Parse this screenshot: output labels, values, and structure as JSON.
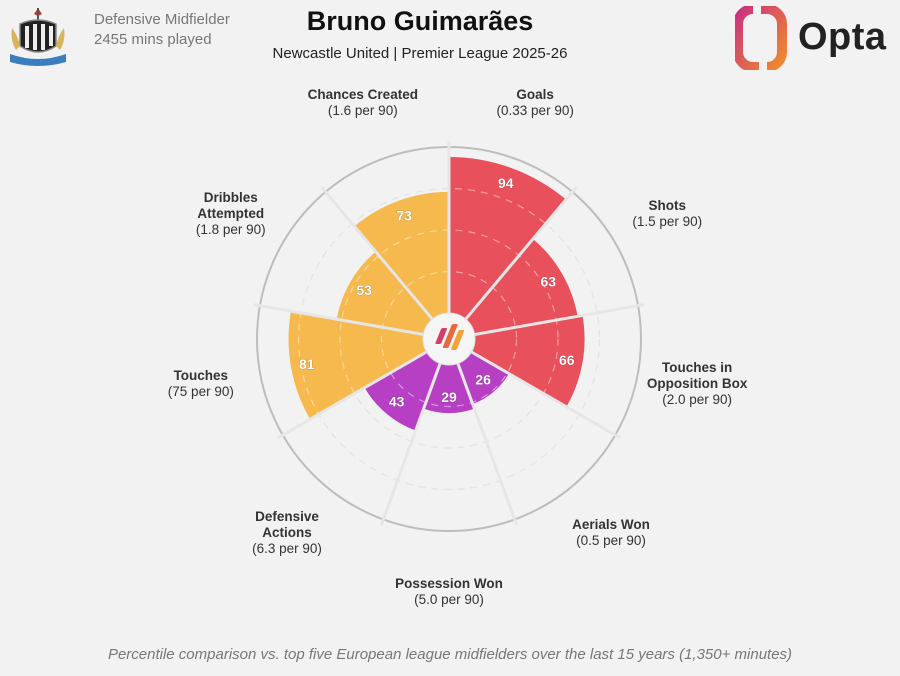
{
  "header": {
    "player_name": "Bruno Guimarães",
    "subtitle": "Newcastle United | Premier League 2025-26",
    "position": "Defensive Midfielder",
    "minutes": "2455 mins played",
    "brand": "Opta",
    "club_crest_text": "NEWCASTLE UNITED"
  },
  "footer": {
    "note": "Percentile comparison vs. top five European league midfielders over the last 15 years (1,350+ minutes)"
  },
  "colors": {
    "attacking": "#e8505b",
    "possession": "#f5b94e",
    "defending": "#b63fc4",
    "background": "#f2f2f2",
    "grid": "#c8c8c8"
  },
  "chart_data": {
    "type": "radial-bar",
    "value_scale": [
      0,
      100
    ],
    "series": [
      {
        "name": "Goals",
        "rate": "(0.33 per 90)",
        "value": 94,
        "group": "attacking"
      },
      {
        "name": "Shots",
        "rate": "(1.5 per 90)",
        "value": 63,
        "group": "attacking"
      },
      {
        "name": "Touches in Opposition Box",
        "label_lines": [
          "Touches in",
          "Opposition Box"
        ],
        "rate": "(2.0 per 90)",
        "value": 66,
        "group": "attacking"
      },
      {
        "name": "Aerials Won",
        "rate": "(0.5 per 90)",
        "value": 26,
        "group": "defending"
      },
      {
        "name": "Possession Won",
        "rate": "(5.0 per 90)",
        "value": 29,
        "group": "defending"
      },
      {
        "name": "Defensive Actions",
        "label_lines": [
          "Defensive",
          "Actions"
        ],
        "rate": "(6.3 per 90)",
        "value": 43,
        "group": "defending"
      },
      {
        "name": "Touches",
        "rate": "(75 per 90)",
        "value": 81,
        "group": "possession"
      },
      {
        "name": "Dribbles Attempted",
        "label_lines": [
          "Dribbles",
          "Attempted"
        ],
        "rate": "(1.8 per 90)",
        "value": 53,
        "group": "possession"
      },
      {
        "name": "Chances Created",
        "rate": "(1.6 per 90)",
        "value": 73,
        "group": "possession"
      }
    ]
  }
}
